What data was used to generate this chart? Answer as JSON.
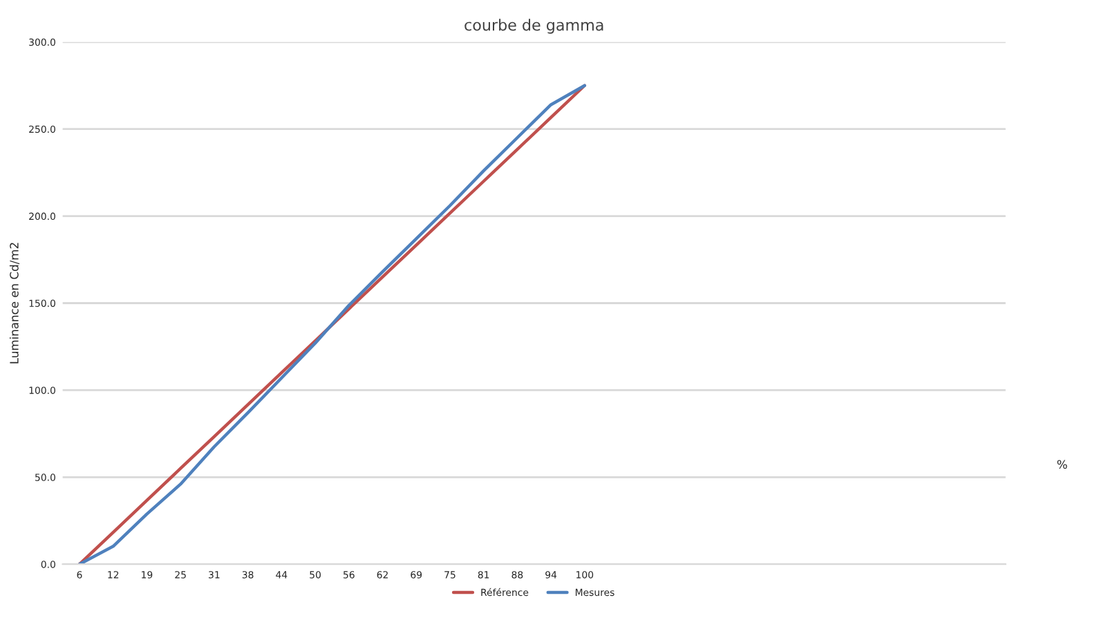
{
  "chart_data": {
    "type": "line",
    "title": "courbe de gamma",
    "ylabel": "Luminance en Cd/m2",
    "xlabel": "%",
    "categories": [
      "6",
      "12",
      "19",
      "25",
      "31",
      "38",
      "44",
      "50",
      "56",
      "62",
      "69",
      "75",
      "81",
      "88",
      "94",
      "100",
      null,
      null,
      null,
      null,
      null,
      null,
      null,
      null,
      null,
      null,
      null,
      null
    ],
    "series": [
      {
        "name": "Référence",
        "color": "#c0504d",
        "values": [
          0,
          18.3,
          36.7,
          55,
          73.3,
          91.7,
          110,
          128.3,
          146.7,
          165,
          183.3,
          201.7,
          220,
          238.3,
          256.7,
          275,
          null,
          null,
          null,
          null,
          null,
          null,
          null,
          null,
          null,
          null,
          null,
          null
        ]
      },
      {
        "name": "Mesures",
        "color": "#4f81bd",
        "values": [
          0,
          10.3,
          28.8,
          46,
          67.5,
          87,
          107,
          127,
          148.7,
          168,
          187,
          206,
          226,
          245,
          264,
          275,
          null,
          null,
          null,
          null,
          null,
          null,
          null,
          null,
          null,
          null,
          null,
          null
        ]
      }
    ],
    "ylim": [
      0,
      300
    ],
    "yticks": [
      {
        "value": 0,
        "label": "0.0"
      },
      {
        "value": 50,
        "label": "50.0"
      },
      {
        "value": 100,
        "label": "100.0"
      },
      {
        "value": 150,
        "label": "150.0"
      },
      {
        "value": 200,
        "label": "200.0"
      },
      {
        "value": 250,
        "label": "250.0"
      },
      {
        "value": 300,
        "label": "300.0"
      }
    ],
    "grid": "y",
    "legend": "bottom",
    "marker": "none",
    "line_style": "solid"
  }
}
